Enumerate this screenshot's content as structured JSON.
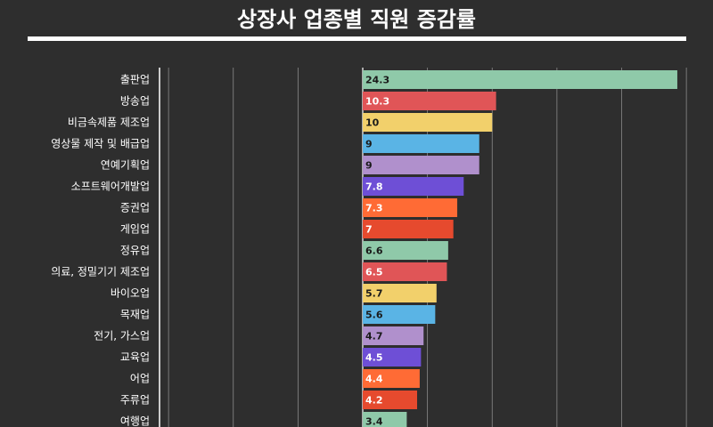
{
  "chart_data": {
    "type": "bar",
    "orientation": "horizontal",
    "title": "상장사 업종별 직원 증감률",
    "xlabel": "",
    "ylabel": "",
    "xlim": [
      -15,
      25
    ],
    "grid": true,
    "categories": [
      "출판업",
      "방송업",
      "비금속제품 제조업",
      "영상물 제작 및 배급업",
      "연예기획업",
      "소프트웨어개발업",
      "증권업",
      "게임업",
      "정유업",
      "의료, 정밀기기 제조업",
      "바이오업",
      "목재업",
      "전기, 가스업",
      "교육업",
      "어업",
      "주류업",
      "여행업"
    ],
    "values": [
      24.3,
      10.3,
      10,
      9,
      9,
      7.8,
      7.3,
      7,
      6.6,
      6.5,
      5.7,
      5.6,
      4.7,
      4.5,
      4.4,
      4.2,
      3.4
    ],
    "value_labels": [
      "24.3",
      "10.3",
      "10",
      "9",
      "9",
      "7.8",
      "7.3",
      "7",
      "6.6",
      "6.5",
      "5.7",
      "5.6",
      "4.7",
      "4.5",
      "4.4",
      "4.2",
      "3.4"
    ],
    "colors": [
      "#8fc9a9",
      "#e05557",
      "#f2d06b",
      "#5ab4e5",
      "#b090cc",
      "#6e4fd6",
      "#ff6b35",
      "#e64a2e",
      "#8fc9a9",
      "#e05557",
      "#f2d06b",
      "#5ab4e5",
      "#b090cc",
      "#6e4fd6",
      "#ff6b35",
      "#e64a2e",
      "#8fc9a9"
    ],
    "label_text_colors": [
      "#1a1a1a",
      "#ffffff",
      "#1a1a1a",
      "#1a1a1a",
      "#1a1a1a",
      "#ffffff",
      "#ffffff",
      "#ffffff",
      "#1a1a1a",
      "#ffffff",
      "#1a1a1a",
      "#1a1a1a",
      "#1a1a1a",
      "#ffffff",
      "#ffffff",
      "#ffffff",
      "#1a1a1a"
    ]
  }
}
